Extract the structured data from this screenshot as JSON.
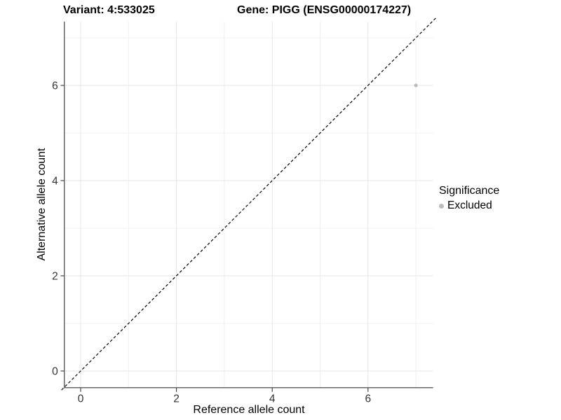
{
  "header": {
    "title_left": "Variant: 4:533025",
    "title_right": "Gene: PIGG (ENSG00000174227)"
  },
  "chart_data": {
    "type": "scatter",
    "title_left": "Variant: 4:533025",
    "title_right": "Gene: PIGG (ENSG00000174227)",
    "xlabel": "Reference allele count",
    "ylabel": "Alternative allele count",
    "x_ticks": [
      0,
      2,
      4,
      6
    ],
    "y_ticks": [
      0,
      2,
      4,
      6
    ],
    "x_minor_ticks": [
      1,
      3,
      5,
      7
    ],
    "y_minor_ticks": [
      1,
      3,
      5,
      7
    ],
    "xlim": [
      -0.34,
      7.36
    ],
    "ylim": [
      -0.35,
      7.34
    ],
    "grid": true,
    "points": [
      {
        "x": 7,
        "y": 6,
        "series": "Excluded"
      }
    ],
    "reference_line": {
      "equation": "y = x",
      "style": "dashed",
      "color": "#000000"
    },
    "legend": {
      "title": "Significance",
      "position": "right",
      "entries": [
        {
          "label": "Excluded",
          "color": "#bcbcbc"
        }
      ]
    },
    "colors": {
      "point": "#bcbcbc",
      "grid_major": "#e6e6e6",
      "grid_minor": "#f0f0f0",
      "axis_line": "#595959",
      "tick_mark": "#333333",
      "tick_text": "#333333",
      "background": "#ffffff"
    }
  }
}
